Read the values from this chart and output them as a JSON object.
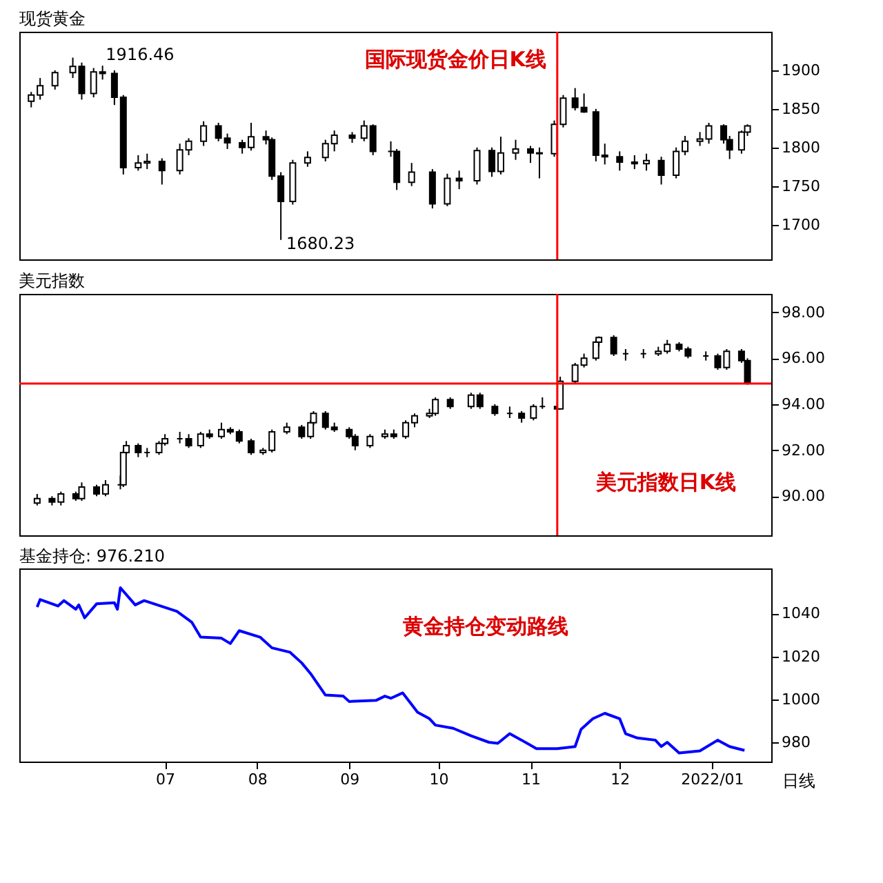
{
  "chart_data": [
    {
      "type": "candlestick",
      "title": "现货黄金",
      "xlim": [
        "2021-05-13",
        "2022-01-21"
      ],
      "ylim": [
        1655,
        1950
      ],
      "yticks": [
        1700,
        1750,
        1800,
        1850,
        1900
      ],
      "tick_labels": "y",
      "x": [
        "2021-05-17",
        "2021-05-20",
        "2021-05-25",
        "2021-05-31",
        "2021-06-03",
        "2021-06-07",
        "2021-06-10",
        "2021-06-14",
        "2021-06-17",
        "2021-06-22",
        "2021-06-25",
        "2021-06-30",
        "2021-07-06",
        "2021-07-09",
        "2021-07-14",
        "2021-07-19",
        "2021-07-22",
        "2021-07-27",
        "2021-07-30",
        "2021-08-04",
        "2021-08-06",
        "2021-08-09",
        "2021-08-13",
        "2021-08-18",
        "2021-08-24",
        "2021-08-27",
        "2021-09-02",
        "2021-09-06",
        "2021-09-09",
        "2021-09-15",
        "2021-09-17",
        "2021-09-22",
        "2021-09-29",
        "2021-10-04",
        "2021-10-08",
        "2021-10-14",
        "2021-10-19",
        "2021-10-22",
        "2021-10-27",
        "2021-11-01",
        "2021-11-04",
        "2021-11-09",
        "2021-11-12",
        "2021-11-16",
        "2021-11-19",
        "2021-11-23",
        "2021-11-26",
        "2021-12-01",
        "2021-12-06",
        "2021-12-10",
        "2021-12-15",
        "2021-12-20",
        "2021-12-23",
        "2021-12-28",
        "2021-12-31",
        "2022-01-05",
        "2022-01-07",
        "2022-01-11",
        "2022-01-13"
      ],
      "ohlc": [
        [
          1860,
          1872,
          1852,
          1868
        ],
        [
          1868,
          1890,
          1862,
          1880
        ],
        [
          1880,
          1900,
          1875,
          1897
        ],
        [
          1897,
          1916.46,
          1890,
          1905
        ],
        [
          1905,
          1910,
          1862,
          1870
        ],
        [
          1870,
          1903,
          1865,
          1898
        ],
        [
          1898,
          1906,
          1888,
          1896
        ],
        [
          1896,
          1900,
          1855,
          1865
        ],
        [
          1865,
          1868,
          1765,
          1774
        ],
        [
          1774,
          1790,
          1770,
          1780
        ],
        [
          1780,
          1792,
          1772,
          1782
        ],
        [
          1782,
          1786,
          1752,
          1770
        ],
        [
          1770,
          1805,
          1765,
          1797
        ],
        [
          1797,
          1812,
          1790,
          1808
        ],
        [
          1808,
          1834,
          1802,
          1828
        ],
        [
          1828,
          1832,
          1808,
          1812
        ],
        [
          1812,
          1818,
          1798,
          1806
        ],
        [
          1806,
          1810,
          1792,
          1800
        ],
        [
          1800,
          1832,
          1796,
          1814
        ],
        [
          1814,
          1822,
          1804,
          1810
        ],
        [
          1810,
          1813,
          1758,
          1763
        ],
        [
          1763,
          1768,
          1680.23,
          1730
        ],
        [
          1730,
          1784,
          1726,
          1780
        ],
        [
          1780,
          1795,
          1775,
          1787
        ],
        [
          1787,
          1810,
          1782,
          1805
        ],
        [
          1805,
          1822,
          1795,
          1816
        ],
        [
          1816,
          1820,
          1806,
          1812
        ],
        [
          1812,
          1835,
          1808,
          1828
        ],
        [
          1828,
          1830,
          1790,
          1795
        ],
        [
          1795,
          1808,
          1788,
          1795
        ],
        [
          1795,
          1798,
          1745,
          1755
        ],
        [
          1755,
          1780,
          1750,
          1768
        ],
        [
          1768,
          1772,
          1721,
          1727
        ],
        [
          1727,
          1766,
          1724,
          1760
        ],
        [
          1760,
          1770,
          1746,
          1757
        ],
        [
          1757,
          1800,
          1752,
          1796
        ],
        [
          1796,
          1800,
          1762,
          1769
        ],
        [
          1769,
          1814,
          1765,
          1793
        ],
        [
          1793,
          1810,
          1784,
          1798
        ],
        [
          1798,
          1802,
          1780,
          1793
        ],
        [
          1793,
          1800,
          1760,
          1792
        ],
        [
          1792,
          1835,
          1788,
          1830
        ],
        [
          1830,
          1868,
          1826,
          1864
        ],
        [
          1864,
          1877,
          1848,
          1852
        ],
        [
          1852,
          1870,
          1845,
          1846
        ],
        [
          1846,
          1850,
          1782,
          1790
        ],
        [
          1790,
          1805,
          1778,
          1788
        ],
        [
          1788,
          1795,
          1770,
          1781
        ],
        [
          1781,
          1790,
          1772,
          1779
        ],
        [
          1779,
          1792,
          1770,
          1783
        ],
        [
          1783,
          1788,
          1752,
          1764
        ],
        [
          1764,
          1800,
          1760,
          1795
        ],
        [
          1795,
          1815,
          1790,
          1808
        ],
        [
          1808,
          1820,
          1802,
          1811
        ],
        [
          1811,
          1832,
          1805,
          1828
        ],
        [
          1828,
          1830,
          1805,
          1810
        ],
        [
          1810,
          1815,
          1785,
          1797
        ],
        [
          1797,
          1822,
          1792,
          1820
        ],
        [
          1820,
          1830,
          1815,
          1828
        ]
      ],
      "ref_lines": [
        {
          "axis": "x",
          "value": "2021-11-10",
          "color": "#ff0000"
        }
      ],
      "annotations": [
        "1916.46",
        "1680.23",
        "国际现货金价日K线"
      ]
    },
    {
      "type": "candlestick",
      "title": "美元指数",
      "xlim": [
        "2021-05-13",
        "2022-01-21"
      ],
      "ylim": [
        88.3,
        98.8
      ],
      "yticks": [
        {
          "value": 90,
          "label": "90.00"
        },
        {
          "value": 92,
          "label": "92.00"
        },
        {
          "value": 94,
          "label": "94.00"
        },
        {
          "value": 96,
          "label": "96.00"
        },
        {
          "value": 98,
          "label": "98.00"
        }
      ],
      "tick_labels": "y",
      "x": [
        "2021-05-19",
        "2021-05-24",
        "2021-05-27",
        "2021-06-01",
        "2021-06-03",
        "2021-06-08",
        "2021-06-11",
        "2021-06-16",
        "2021-06-17",
        "2021-06-18",
        "2021-06-22",
        "2021-06-25",
        "2021-06-29",
        "2021-07-01",
        "2021-07-06",
        "2021-07-09",
        "2021-07-13",
        "2021-07-16",
        "2021-07-20",
        "2021-07-23",
        "2021-07-26",
        "2021-07-30",
        "2021-08-03",
        "2021-08-06",
        "2021-08-11",
        "2021-08-16",
        "2021-08-19",
        "2021-08-20",
        "2021-08-24",
        "2021-08-27",
        "2021-09-01",
        "2021-09-03",
        "2021-09-08",
        "2021-09-13",
        "2021-09-16",
        "2021-09-20",
        "2021-09-23",
        "2021-09-28",
        "2021-09-30",
        "2021-10-05",
        "2021-10-12",
        "2021-10-15",
        "2021-10-20",
        "2021-10-25",
        "2021-10-29",
        "2021-11-02",
        "2021-11-05",
        "2021-11-10",
        "2021-11-11",
        "2021-11-16",
        "2021-11-19",
        "2021-11-23",
        "2021-11-24",
        "2021-11-29",
        "2021-12-03",
        "2021-12-09",
        "2021-12-14",
        "2021-12-17",
        "2021-12-21",
        "2021-12-24",
        "2021-12-30",
        "2022-01-03",
        "2022-01-06",
        "2022-01-11",
        "2022-01-13"
      ],
      "ohlc": [
        [
          89.7,
          90.1,
          89.6,
          89.9
        ],
        [
          89.9,
          90.0,
          89.6,
          89.75
        ],
        [
          89.75,
          90.2,
          89.6,
          90.1
        ],
        [
          90.1,
          90.2,
          89.8,
          89.9
        ],
        [
          89.9,
          90.6,
          89.8,
          90.4
        ],
        [
          90.4,
          90.5,
          90.0,
          90.1
        ],
        [
          90.1,
          90.7,
          90.0,
          90.5
        ],
        [
          90.5,
          90.9,
          90.3,
          90.5
        ],
        [
          90.5,
          92.0,
          90.4,
          91.9
        ],
        [
          91.9,
          92.4,
          91.8,
          92.2
        ],
        [
          92.2,
          92.3,
          91.7,
          91.9
        ],
        [
          91.9,
          92.1,
          91.7,
          91.9
        ],
        [
          91.9,
          92.4,
          91.8,
          92.3
        ],
        [
          92.3,
          92.7,
          92.2,
          92.5
        ],
        [
          92.5,
          92.8,
          92.3,
          92.5
        ],
        [
          92.5,
          92.7,
          92.1,
          92.2
        ],
        [
          92.2,
          92.8,
          92.1,
          92.7
        ],
        [
          92.7,
          92.9,
          92.5,
          92.6
        ],
        [
          92.6,
          93.2,
          92.5,
          92.9
        ],
        [
          92.9,
          93.0,
          92.7,
          92.8
        ],
        [
          92.8,
          92.9,
          92.3,
          92.4
        ],
        [
          92.4,
          92.5,
          91.8,
          91.9
        ],
        [
          91.9,
          92.1,
          91.8,
          92.0
        ],
        [
          92.0,
          92.9,
          91.9,
          92.8
        ],
        [
          92.8,
          93.2,
          92.7,
          93.0
        ],
        [
          93.0,
          93.1,
          92.5,
          92.6
        ],
        [
          92.6,
          93.3,
          92.5,
          93.2
        ],
        [
          93.2,
          93.7,
          93.1,
          93.6
        ],
        [
          93.6,
          93.7,
          92.9,
          93.0
        ],
        [
          93.0,
          93.2,
          92.8,
          92.9
        ],
        [
          92.9,
          93.0,
          92.5,
          92.6
        ],
        [
          92.6,
          92.7,
          92.0,
          92.2
        ],
        [
          92.2,
          92.7,
          92.1,
          92.6
        ],
        [
          92.6,
          92.9,
          92.5,
          92.7
        ],
        [
          92.7,
          92.9,
          92.5,
          92.6
        ],
        [
          92.6,
          93.3,
          92.5,
          93.2
        ],
        [
          93.2,
          93.6,
          93.0,
          93.5
        ],
        [
          93.5,
          93.8,
          93.4,
          93.6
        ],
        [
          93.6,
          94.3,
          93.5,
          94.2
        ],
        [
          94.2,
          94.3,
          93.8,
          93.9
        ],
        [
          93.9,
          94.5,
          93.8,
          94.4
        ],
        [
          94.4,
          94.5,
          93.8,
          93.9
        ],
        [
          93.9,
          94.0,
          93.5,
          93.6
        ],
        [
          93.6,
          93.9,
          93.4,
          93.6
        ],
        [
          93.6,
          93.7,
          93.2,
          93.4
        ],
        [
          93.4,
          94.0,
          93.3,
          93.9
        ],
        [
          93.9,
          94.3,
          93.8,
          93.9
        ],
        [
          93.9,
          94.1,
          93.7,
          93.8
        ],
        [
          93.8,
          95.2,
          93.8,
          95.0
        ],
        [
          95.0,
          95.8,
          94.9,
          95.7
        ],
        [
          95.7,
          96.2,
          95.6,
          96.0
        ],
        [
          96.0,
          96.8,
          95.9,
          96.7
        ],
        [
          96.7,
          96.95,
          96.5,
          96.9
        ],
        [
          96.9,
          97.0,
          96.1,
          96.2
        ],
        [
          96.2,
          96.4,
          95.9,
          96.2
        ],
        [
          96.2,
          96.4,
          96.0,
          96.2
        ],
        [
          96.2,
          96.5,
          96.1,
          96.3
        ],
        [
          96.3,
          96.8,
          96.2,
          96.6
        ],
        [
          96.6,
          96.7,
          96.3,
          96.4
        ],
        [
          96.4,
          96.5,
          96.0,
          96.1
        ],
        [
          96.1,
          96.3,
          95.9,
          96.1
        ],
        [
          96.1,
          96.2,
          95.5,
          95.6
        ],
        [
          95.6,
          96.4,
          95.5,
          96.3
        ],
        [
          96.3,
          96.4,
          95.8,
          95.9
        ],
        [
          95.9,
          96.0,
          94.85,
          94.9
        ]
      ],
      "ref_lines": [
        {
          "axis": "x",
          "value": "2021-11-10",
          "color": "#ff0000"
        },
        {
          "axis": "y",
          "value": 94.9,
          "color": "#ff0000"
        }
      ],
      "annotations": [
        "美元指数日K线"
      ]
    },
    {
      "type": "line",
      "title": "基金持仓: 976.210",
      "xlim": [
        "2021-05-13",
        "2022-01-21"
      ],
      "ylim": [
        971,
        1061
      ],
      "yticks": [
        980,
        1000,
        1020,
        1040
      ],
      "xticks": [
        {
          "value": "2021-07-01",
          "label": "07"
        },
        {
          "value": "2021-08-01",
          "label": "08"
        },
        {
          "value": "2021-09-01",
          "label": "09"
        },
        {
          "value": "2021-10-01",
          "label": "10"
        },
        {
          "value": "2021-11-01",
          "label": "11"
        },
        {
          "value": "2021-12-01",
          "label": "12"
        },
        {
          "value": "2022-01-01",
          "label": "2022/01"
        }
      ],
      "series": [
        {
          "color": "#0000ff",
          "x": [
            "2021-05-19",
            "2021-05-20",
            "2021-05-26",
            "2021-05-28",
            "2021-06-01",
            "2021-06-02",
            "2021-06-04",
            "2021-06-08",
            "2021-06-14",
            "2021-06-15",
            "2021-06-16",
            "2021-06-21",
            "2021-06-24",
            "2021-07-05",
            "2021-07-10",
            "2021-07-13",
            "2021-07-20",
            "2021-07-23",
            "2021-07-26",
            "2021-08-02",
            "2021-08-06",
            "2021-08-12",
            "2021-08-16",
            "2021-08-19",
            "2021-08-24",
            "2021-08-30",
            "2021-09-01",
            "2021-09-10",
            "2021-09-13",
            "2021-09-15",
            "2021-09-19",
            "2021-09-24",
            "2021-09-28",
            "2021-09-30",
            "2021-10-06",
            "2021-10-12",
            "2021-10-18",
            "2021-10-21",
            "2021-10-25",
            "2021-10-29",
            "2021-11-03",
            "2021-11-10",
            "2021-11-16",
            "2021-11-18",
            "2021-11-22",
            "2021-11-26",
            "2021-12-01",
            "2021-12-03",
            "2021-12-07",
            "2021-12-13",
            "2021-12-15",
            "2021-12-17",
            "2021-12-21",
            "2021-12-28",
            "2022-01-03",
            "2022-01-07",
            "2022-01-12"
          ],
          "values": [
            1043,
            1046.5,
            1043.5,
            1046,
            1042,
            1044,
            1038,
            1044.5,
            1045,
            1042,
            1052,
            1044,
            1046,
            1041,
            1036,
            1029,
            1028.5,
            1026,
            1032,
            1029,
            1024,
            1022,
            1017,
            1012,
            1002,
            1001.5,
            999,
            999.5,
            1001.5,
            1000.5,
            1003,
            994,
            991,
            988,
            986.5,
            983,
            980,
            979.5,
            984,
            981,
            977,
            977,
            978,
            986,
            991,
            993.5,
            991,
            984,
            982,
            981,
            978,
            980,
            975,
            976,
            981,
            978,
            976.21
          ]
        }
      ],
      "annotations": [
        "黄金持仓变动路线",
        "日线"
      ]
    }
  ]
}
